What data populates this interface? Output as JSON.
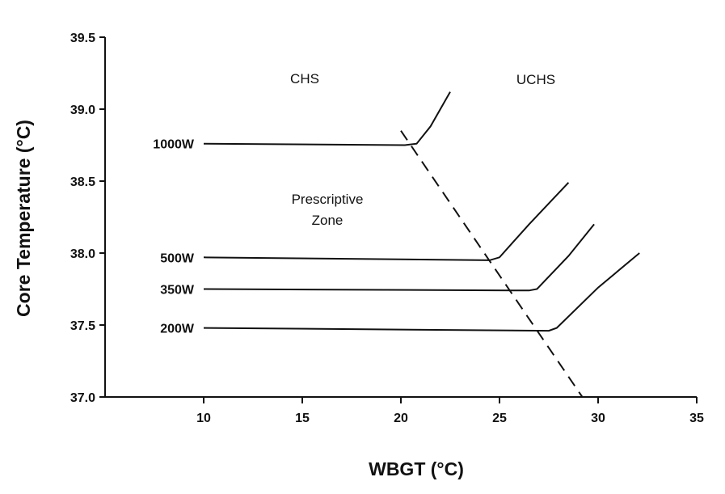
{
  "chart_data": {
    "type": "line",
    "title": "",
    "xlabel": "WBGT (°C)",
    "ylabel": "Core Temperature (°C)",
    "xlim": [
      5,
      35
    ],
    "ylim": [
      37.0,
      39.5
    ],
    "x_ticks": [
      "10",
      "15",
      "20",
      "25",
      "30",
      "35"
    ],
    "y_ticks": [
      "37.0",
      "37.5",
      "38.0",
      "38.5",
      "39.0",
      "39.5"
    ],
    "grid": false,
    "legend": "none",
    "series": [
      {
        "name": "1000W",
        "points": [
          [
            10,
            38.76
          ],
          [
            20.2,
            38.75
          ],
          [
            20.8,
            38.76
          ],
          [
            21.5,
            38.88
          ],
          [
            22.5,
            39.12
          ]
        ]
      },
      {
        "name": "500W",
        "points": [
          [
            10,
            37.97
          ],
          [
            24.5,
            37.95
          ],
          [
            25.0,
            37.97
          ],
          [
            26.5,
            38.2
          ],
          [
            28.5,
            38.49
          ]
        ]
      },
      {
        "name": "350W",
        "points": [
          [
            10,
            37.75
          ],
          [
            26.5,
            37.74
          ],
          [
            26.9,
            37.75
          ],
          [
            28.5,
            37.98
          ],
          [
            29.8,
            38.2
          ]
        ]
      },
      {
        "name": "200W",
        "points": [
          [
            10,
            37.48
          ],
          [
            27.5,
            37.46
          ],
          [
            27.9,
            37.48
          ],
          [
            30.0,
            37.76
          ],
          [
            32.1,
            38.0
          ]
        ]
      }
    ],
    "boundary": {
      "points": [
        [
          20,
          38.85
        ],
        [
          29.2,
          37.0
        ]
      ]
    },
    "annotations": {
      "chs": "CHS",
      "uchs": "UCHS",
      "zone_line1": "Prescriptive",
      "zone_line2": "Zone"
    }
  }
}
